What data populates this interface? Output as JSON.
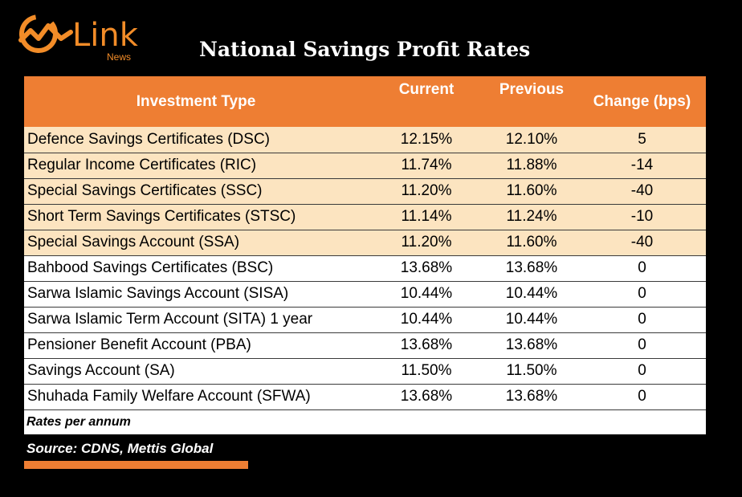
{
  "brand": {
    "logo_text": "Link",
    "logo_sub": "News",
    "accent_color": "#F28C28"
  },
  "chart_data": {
    "type": "table",
    "title": "National Savings Profit Rates",
    "columns": [
      "Investment Type",
      "Current",
      "Previous",
      "Change (bps)"
    ],
    "rows": [
      {
        "name": "Defence Savings Certificates (DSC)",
        "current": "12.15%",
        "previous": "12.10%",
        "change": "5",
        "highlight": true
      },
      {
        "name": "Regular Income Certificates (RIC)",
        "current": "11.74%",
        "previous": "11.88%",
        "change": "-14",
        "highlight": true
      },
      {
        "name": "Special Savings Certificates (SSC)",
        "current": "11.20%",
        "previous": "11.60%",
        "change": "-40",
        "highlight": true
      },
      {
        "name": "Short Term Savings Certificates (STSC)",
        "current": "11.14%",
        "previous": "11.24%",
        "change": "-10",
        "highlight": true
      },
      {
        "name": "Special Savings Account (SSA)",
        "current": "11.20%",
        "previous": "11.60%",
        "change": "-40",
        "highlight": true
      },
      {
        "name": "Bahbood Savings Certificates (BSC)",
        "current": "13.68%",
        "previous": "13.68%",
        "change": "0",
        "highlight": false
      },
      {
        "name": "Sarwa Islamic Savings Account (SISA)",
        "current": "10.44%",
        "previous": "10.44%",
        "change": "0",
        "highlight": false
      },
      {
        "name": "Sarwa Islamic Term Account (SITA) 1 year",
        "current": "10.44%",
        "previous": "10.44%",
        "change": "0",
        "highlight": false
      },
      {
        "name": "Pensioner Benefit Account (PBA)",
        "current": "13.68%",
        "previous": "13.68%",
        "change": "0",
        "highlight": false
      },
      {
        "name": "Savings Account (SA)",
        "current": "11.50%",
        "previous": "11.50%",
        "change": "0",
        "highlight": false
      },
      {
        "name": "Shuhada Family Welfare Account (SFWA)",
        "current": "13.68%",
        "previous": "13.68%",
        "change": "0",
        "highlight": false
      }
    ],
    "note": "Rates per annum",
    "source": "Source: CDNS, Mettis Global",
    "colors": {
      "header_bg": "#EE7E33",
      "highlight_row_bg": "#FCE4C0",
      "plain_row_bg": "#FFFFFF",
      "background": "#000000"
    }
  }
}
